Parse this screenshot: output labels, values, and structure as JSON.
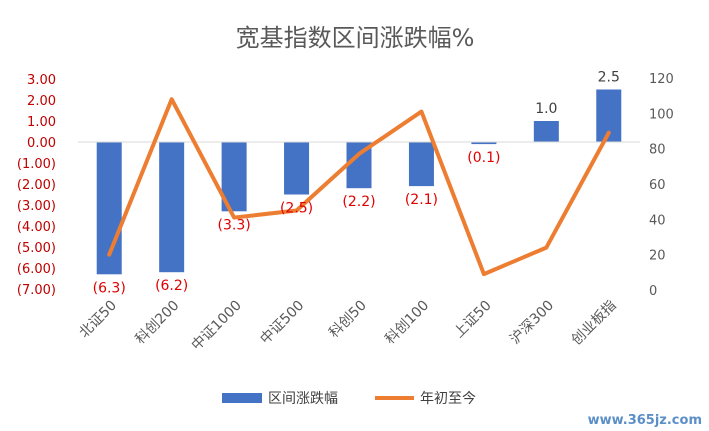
{
  "chart_data": {
    "type": "bar",
    "title": "宽基指数区间涨跌幅%",
    "categories": [
      "北证50",
      "科创200",
      "中证1000",
      "中证500",
      "科创50",
      "科创100",
      "上证50",
      "沪深300",
      "创业板指"
    ],
    "series": [
      {
        "name": "区间涨跌幅",
        "type": "bar",
        "axis": "left",
        "color": "#4472c4",
        "values": [
          -6.3,
          -6.2,
          -3.3,
          -2.5,
          -2.2,
          -2.1,
          -0.1,
          1.0,
          2.5
        ],
        "labels": [
          "(6.3)",
          "(6.2)",
          "(3.3)",
          "(2.5)",
          "(2.2)",
          "(2.1)",
          "(0.1)",
          "1.0",
          "2.5"
        ]
      },
      {
        "name": "年初至今",
        "type": "line",
        "axis": "right",
        "color": "#ed7d31",
        "values": [
          20,
          108,
          41,
          45,
          77,
          101,
          9,
          24,
          89
        ]
      }
    ],
    "y_left": {
      "min": -7,
      "max": 3,
      "step": 1,
      "ticks": [
        "3.00",
        "2.00",
        "1.00",
        "0.00",
        "(1.00)",
        "(2.00)",
        "(3.00)",
        "(4.00)",
        "(5.00)",
        "(6.00)",
        "(7.00)"
      ]
    },
    "y_right": {
      "min": 0,
      "max": 120,
      "step": 20,
      "ticks": [
        "120",
        "100",
        "80",
        "60",
        "40",
        "20",
        "0"
      ]
    },
    "legend_position": "bottom",
    "grid": false
  },
  "watermark": "www.365jz.com"
}
